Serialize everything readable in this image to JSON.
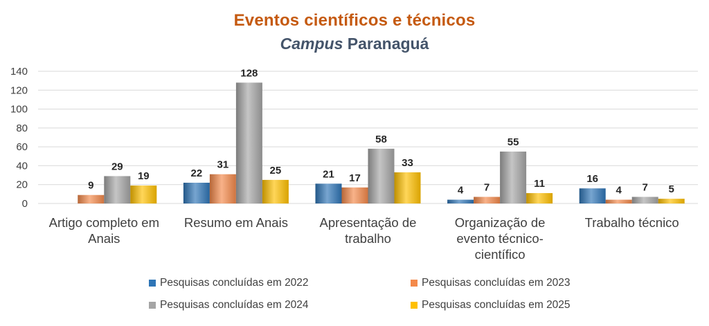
{
  "chart_data": {
    "type": "bar",
    "title": "Eventos científicos e técnicos",
    "subtitle_italic": "Campus",
    "subtitle_rest": "Paranaguá",
    "xlabel": "",
    "ylabel": "",
    "ylim": [
      0,
      140
    ],
    "yticks": [
      0,
      20,
      40,
      60,
      80,
      100,
      120,
      140
    ],
    "grid": true,
    "legend_position": "bottom",
    "categories": [
      [
        "Artigo completo em",
        "Anais"
      ],
      [
        "Resumo em Anais"
      ],
      [
        "Apresentação de",
        "trabalho"
      ],
      [
        "Organização de",
        "evento técnico-",
        "científico"
      ],
      [
        "Trabalho técnico"
      ]
    ],
    "series": [
      {
        "name": "Pesquisas concluídas em 2022",
        "color": "#2e75b6",
        "values": [
          null,
          22,
          21,
          4,
          16
        ]
      },
      {
        "name": "Pesquisas concluídas em 2023",
        "color": "#f4894a",
        "values": [
          9,
          31,
          17,
          7,
          4
        ]
      },
      {
        "name": "Pesquisas concluídas em 2024",
        "color": "#a5a5a5",
        "values": [
          29,
          128,
          58,
          55,
          7
        ]
      },
      {
        "name": "Pesquisas concluídas em 2025",
        "color": "#ffc000",
        "values": [
          19,
          25,
          33,
          11,
          5
        ]
      }
    ]
  }
}
